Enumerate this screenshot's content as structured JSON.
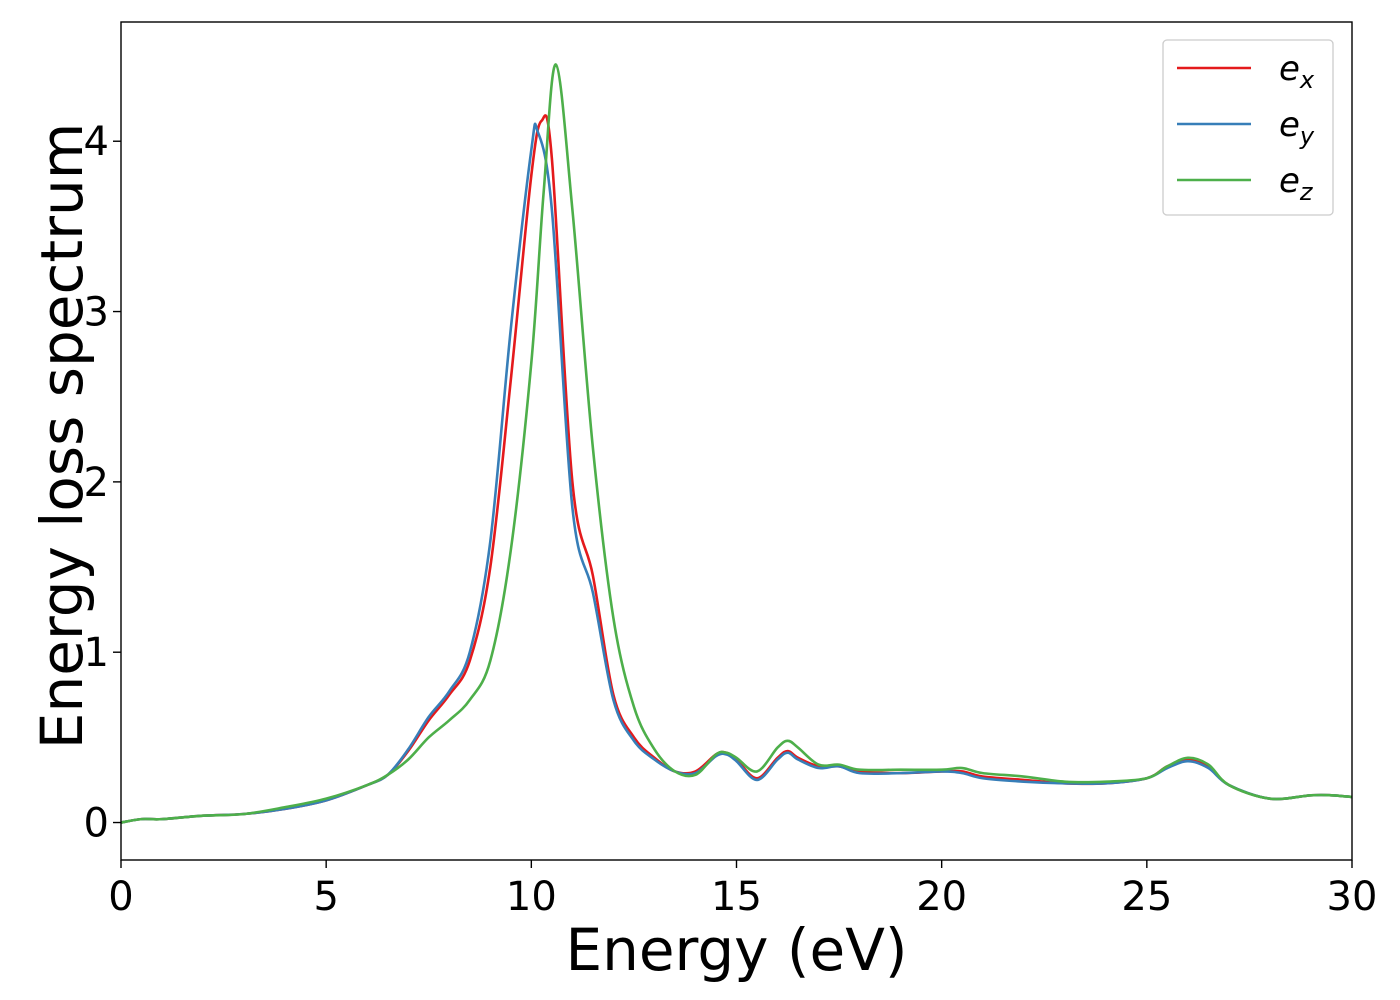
{
  "chart_data": {
    "type": "line",
    "xlabel": "Energy (eV)",
    "ylabel": "Energy loss spectrum",
    "xlim": [
      0,
      30
    ],
    "ylim": [
      -0.22,
      4.7
    ],
    "xticks": [
      "0",
      "5",
      "10",
      "15",
      "20",
      "25",
      "30"
    ],
    "yticks": [
      "0",
      "1",
      "2",
      "3",
      "4"
    ],
    "grid": false,
    "legend_position": "top-right",
    "series": [
      {
        "name": "e_x",
        "label_base": "e",
        "label_sub": "x",
        "color": "#e41a1c",
        "x": [
          0,
          0.5,
          1,
          2,
          3,
          4,
          5,
          6,
          6.5,
          7,
          7.5,
          8,
          8.5,
          9,
          9.5,
          10,
          10.25,
          10.5,
          11,
          11.5,
          12,
          12.5,
          13,
          13.5,
          14,
          14.5,
          14.75,
          15,
          15.5,
          16,
          16.25,
          16.5,
          17,
          17.5,
          18,
          19,
          20,
          20.5,
          21,
          22,
          23,
          24,
          25,
          25.5,
          26,
          26.5,
          27,
          28,
          29,
          29.5,
          30
        ],
        "y": [
          0,
          0.02,
          0.02,
          0.04,
          0.05,
          0.08,
          0.13,
          0.22,
          0.28,
          0.42,
          0.6,
          0.75,
          0.95,
          1.5,
          2.6,
          3.8,
          4.12,
          3.9,
          2.0,
          1.45,
          0.75,
          0.5,
          0.38,
          0.3,
          0.3,
          0.4,
          0.41,
          0.37,
          0.26,
          0.38,
          0.42,
          0.38,
          0.33,
          0.33,
          0.3,
          0.29,
          0.3,
          0.3,
          0.27,
          0.25,
          0.23,
          0.23,
          0.26,
          0.33,
          0.37,
          0.33,
          0.22,
          0.14,
          0.16,
          0.16,
          0.15
        ]
      },
      {
        "name": "e_y",
        "label_base": "e",
        "label_sub": "y",
        "color": "#377eb8",
        "x": [
          0,
          0.5,
          1,
          2,
          3,
          4,
          5,
          6,
          6.5,
          7,
          7.5,
          8,
          8.5,
          9,
          9.5,
          10,
          10.15,
          10.5,
          11,
          11.5,
          12,
          12.5,
          13,
          13.5,
          14,
          14.5,
          14.75,
          15,
          15.5,
          16,
          16.25,
          16.5,
          17,
          17.5,
          18,
          19,
          20,
          20.5,
          21,
          22,
          23,
          24,
          25,
          25.5,
          26,
          26.5,
          27,
          28,
          29,
          29.5,
          30
        ],
        "y": [
          0,
          0.02,
          0.02,
          0.04,
          0.05,
          0.08,
          0.13,
          0.22,
          0.28,
          0.43,
          0.62,
          0.77,
          1.0,
          1.65,
          2.9,
          3.95,
          4.06,
          3.6,
          1.85,
          1.35,
          0.72,
          0.48,
          0.37,
          0.3,
          0.29,
          0.39,
          0.4,
          0.36,
          0.25,
          0.37,
          0.41,
          0.37,
          0.32,
          0.33,
          0.29,
          0.29,
          0.3,
          0.29,
          0.26,
          0.24,
          0.23,
          0.23,
          0.26,
          0.32,
          0.36,
          0.32,
          0.22,
          0.14,
          0.16,
          0.16,
          0.15
        ]
      },
      {
        "name": "e_z",
        "label_base": "e",
        "label_sub": "z",
        "color": "#4daf4a",
        "x": [
          0,
          0.5,
          1,
          2,
          3,
          4,
          5,
          6,
          6.5,
          7,
          7.5,
          8,
          8.5,
          9,
          9.5,
          10,
          10.3,
          10.6,
          11,
          11.5,
          12,
          12.5,
          13,
          13.5,
          14,
          14.5,
          14.75,
          15,
          15.5,
          16,
          16.25,
          16.5,
          17,
          17.5,
          18,
          19,
          20,
          20.5,
          21,
          22,
          23,
          24,
          25,
          25.5,
          26,
          26.5,
          27,
          28,
          29,
          29.5,
          30
        ],
        "y": [
          0,
          0.02,
          0.02,
          0.04,
          0.05,
          0.09,
          0.14,
          0.22,
          0.28,
          0.37,
          0.5,
          0.6,
          0.72,
          0.95,
          1.6,
          2.7,
          3.7,
          4.45,
          3.6,
          2.2,
          1.2,
          0.68,
          0.43,
          0.3,
          0.28,
          0.4,
          0.41,
          0.38,
          0.3,
          0.44,
          0.48,
          0.44,
          0.34,
          0.34,
          0.31,
          0.31,
          0.31,
          0.32,
          0.29,
          0.27,
          0.24,
          0.24,
          0.26,
          0.33,
          0.38,
          0.34,
          0.22,
          0.14,
          0.16,
          0.16,
          0.15
        ]
      }
    ]
  }
}
